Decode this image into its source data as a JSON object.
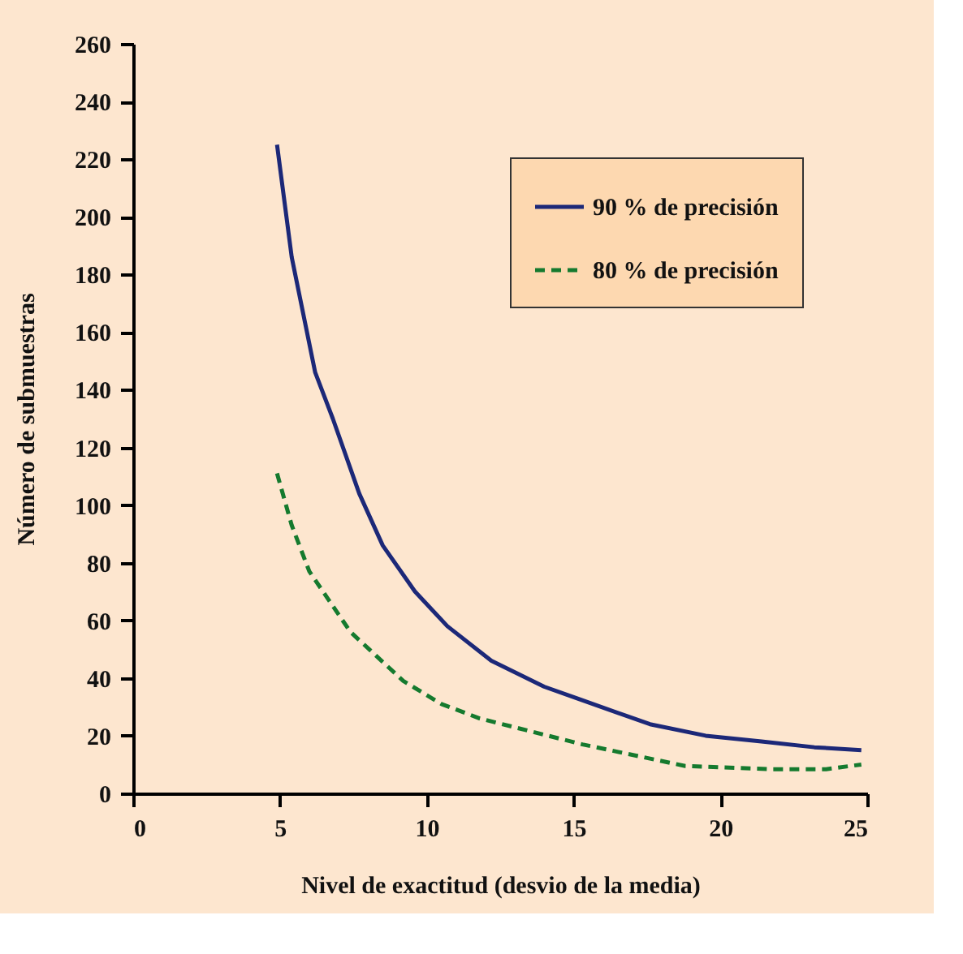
{
  "chart_data": {
    "type": "line",
    "xlabel": "Nivel de exactitud (desvio de la media)",
    "ylabel": "Número de submuestras",
    "xlim": [
      0,
      25
    ],
    "xticks": [
      0,
      5,
      10,
      15,
      20,
      25
    ],
    "ylim": [
      0,
      260
    ],
    "yticks": [
      0,
      20,
      40,
      60,
      80,
      100,
      120,
      140,
      160,
      180,
      200,
      220,
      240,
      260
    ],
    "grid": false,
    "legend": "top right",
    "marker": "none",
    "series": [
      {
        "name": "90 % de precisión",
        "color": "#1c2878",
        "line_style": "solid",
        "x": [
          4.9,
          5.4,
          6.2,
          6.8,
          7.7,
          8.5,
          9.6,
          10.7,
          12.2,
          14,
          15.1,
          17.6,
          19.5,
          21.4,
          23.2,
          24.8
        ],
        "values": [
          225,
          186,
          146,
          130,
          104,
          86,
          70,
          58,
          46,
          37,
          33,
          24,
          20,
          18,
          16,
          15
        ]
      },
      {
        "name": "80 % de precisión",
        "color": "#157a2e",
        "line_style": "dashed",
        "x": [
          4.9,
          5.4,
          6,
          7.4,
          9.2,
          10.5,
          11.8,
          15.3,
          18.8,
          21.7,
          23.6,
          24.8
        ],
        "values": [
          111,
          93,
          77,
          56,
          39,
          31,
          26,
          17,
          9.5,
          8.4,
          8.4,
          10
        ]
      }
    ]
  }
}
